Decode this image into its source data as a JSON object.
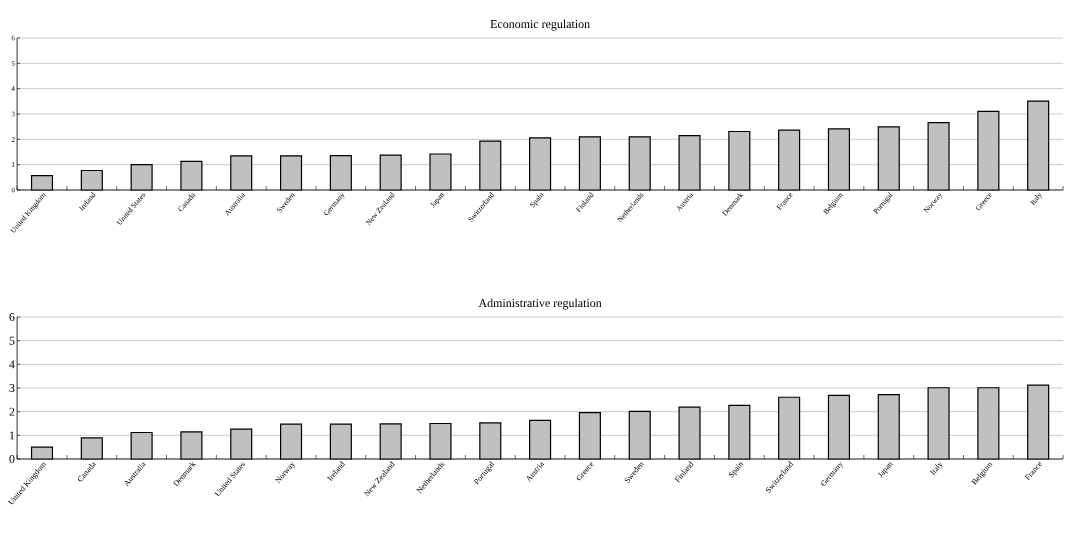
{
  "chart_data": [
    {
      "type": "bar",
      "title": "Economic regulation",
      "categories": [
        "United Kingdom",
        "Ireland",
        "United States",
        "Canada",
        "Australia",
        "Sweden",
        "Germany",
        "New Zealand",
        "Japan",
        "Switzerland",
        "Spain",
        "Finland",
        "Netherlands",
        "Austria",
        "Denmark",
        "France",
        "Belgium",
        "Portugal",
        "Norway",
        "Greece",
        "Italy"
      ],
      "values": [
        0.57,
        0.77,
        1.0,
        1.13,
        1.35,
        1.35,
        1.36,
        1.38,
        1.42,
        1.93,
        2.06,
        2.1,
        2.1,
        2.15,
        2.31,
        2.36,
        2.41,
        2.49,
        2.66,
        3.1,
        3.51
      ],
      "color": "#c0c0c0",
      "ylim": [
        0,
        6
      ],
      "yticks": [
        0,
        1,
        2,
        3,
        4,
        5,
        6
      ],
      "grid": "y"
    },
    {
      "type": "bar",
      "title": "Administrative regulation",
      "categories": [
        "United Kingdom",
        "Canada",
        "Australia",
        "Denmark",
        "United States",
        "Norway",
        "Ireland",
        "New Zealand",
        "Netherlands",
        "Portugal",
        "Austria",
        "Greece",
        "Sweden",
        "Finland",
        "Spain",
        "Switzerland",
        "Germany",
        "Japan",
        "Italy",
        "Belgium",
        "France"
      ],
      "values": [
        0.5,
        0.89,
        1.12,
        1.15,
        1.26,
        1.47,
        1.47,
        1.48,
        1.5,
        1.53,
        1.63,
        1.96,
        2.01,
        2.19,
        2.27,
        2.61,
        2.69,
        2.72,
        3.01,
        3.01,
        3.12
      ],
      "color": "#c0c0c0",
      "ylim": [
        0,
        6
      ],
      "yticks": [
        0,
        1,
        2,
        3,
        4,
        5,
        6
      ],
      "grid": "y"
    }
  ]
}
